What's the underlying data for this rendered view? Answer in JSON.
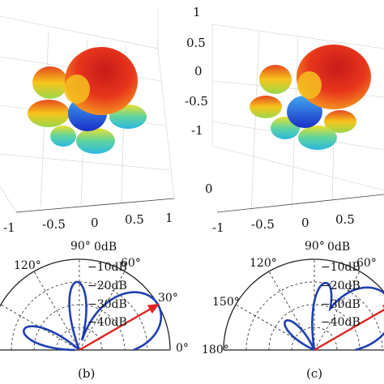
{
  "chart_data": [
    {
      "type": "3d-radiation-pattern",
      "panel": "b-top",
      "tick_labels": {
        "x": [
          "-1",
          "-0.5",
          "0",
          "0.5",
          "1"
        ]
      }
    },
    {
      "type": "3d-radiation-pattern",
      "panel": "c-top",
      "tick_labels": {
        "x": [
          "-1",
          "-0.5",
          "0",
          "0.5"
        ],
        "z": [
          "1",
          "0.5",
          "0",
          "-0.5",
          "-1"
        ],
        "y": [
          "0"
        ]
      }
    },
    {
      "type": "polar",
      "panel": "b",
      "caption": "(b)",
      "angle_labels": [
        "120°",
        "90°",
        "60°",
        "30°",
        "0°"
      ],
      "radial_labels": [
        "0dB",
        "−10dB",
        "−20dB",
        "−30dB",
        "−40dB"
      ],
      "radial_range_db": [
        -40,
        0
      ],
      "beam_direction_deg": 30,
      "lobes": [
        {
          "center_deg": 30,
          "width_deg": 22,
          "level_db": 0
        },
        {
          "center_deg": 92,
          "width_deg": 10,
          "level_db": -10
        },
        {
          "center_deg": 85,
          "width_deg": 5,
          "level_db": -30
        },
        {
          "center_deg": 160,
          "width_deg": 12,
          "level_db": -14
        }
      ]
    },
    {
      "type": "polar",
      "panel": "c",
      "caption": "(c)",
      "angle_labels": [
        "180°",
        "150°",
        "120°",
        "90°",
        "60°"
      ],
      "radial_labels": [
        "0dB",
        "−10dB",
        "−20dB",
        "−30dB",
        "−40dB"
      ],
      "radial_range_db": [
        -40,
        0
      ],
      "beam_direction_deg": 30,
      "lobes": [
        {
          "center_deg": 35,
          "width_deg": 22,
          "level_db": 0
        },
        {
          "center_deg": 80,
          "width_deg": 10,
          "level_db": -10
        },
        {
          "center_deg": 135,
          "width_deg": 14,
          "level_db": -22
        }
      ]
    }
  ],
  "colors": {
    "pattern_line": "#1f3fb0",
    "beam_arrow": "#e02424",
    "grid": "#222222"
  }
}
